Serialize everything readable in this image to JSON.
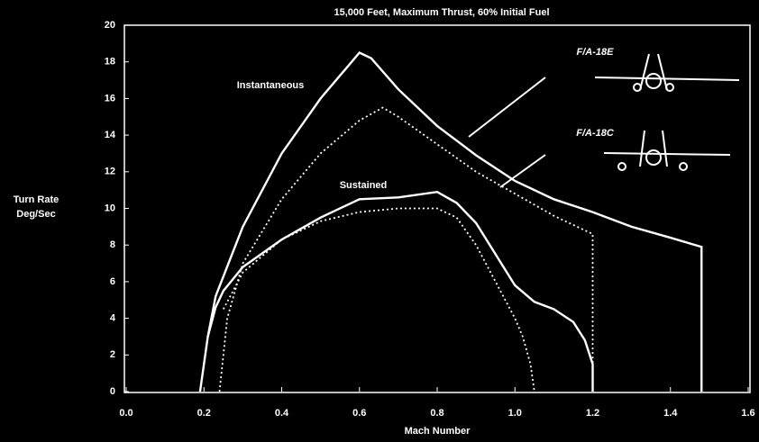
{
  "chart_data": {
    "type": "line",
    "title": "15,000 Feet, Maximum Thrust, 60% Initial Fuel",
    "xlabel": "Mach Number",
    "ylabel": [
      "Turn Rate",
      "Deg/Sec"
    ],
    "xlim": [
      0,
      1.6
    ],
    "xticks": [
      {
        "value": 0,
        "label": "0.0"
      },
      0.2,
      0.4,
      0.6,
      0.8,
      {
        "value": 1,
        "label": "1.0"
      },
      1.2,
      1.4,
      1.6
    ],
    "ylim": [
      0,
      20
    ],
    "yticks": [
      0,
      2,
      4,
      6,
      8,
      10,
      12,
      14,
      16,
      18,
      20
    ],
    "background": "#000000",
    "series": [
      {
        "color": "#ffffff",
        "dash": false,
        "x": [
          0.19,
          0.21,
          0.23,
          0.3,
          0.4,
          0.5,
          0.6,
          0.63,
          0.7,
          0.8,
          0.9,
          1.0,
          1.1,
          1.2,
          1.3,
          1.4,
          1.48,
          1.48
        ],
        "values": [
          0,
          3,
          5.2,
          9,
          13,
          16,
          18.5,
          18.2,
          16.5,
          14.5,
          12.9,
          11.5,
          10.5,
          9.8,
          9,
          8.4,
          7.9,
          0
        ]
      },
      {
        "color": "#ffffff",
        "dash": true,
        "x": [
          0.24,
          0.26,
          0.3,
          0.4,
          0.5,
          0.6,
          0.66,
          0.7,
          0.8,
          0.9,
          1.0,
          1.1,
          1.2,
          1.2
        ],
        "values": [
          0,
          4,
          7,
          10.5,
          13,
          14.8,
          15.5,
          15,
          13.5,
          12,
          10.8,
          9.6,
          8.6,
          0
        ]
      },
      {
        "color": "#ffffff",
        "dash": false,
        "x": [
          0.21,
          0.23,
          0.25,
          0.3,
          0.4,
          0.5,
          0.6,
          0.7,
          0.8,
          0.85,
          0.9,
          0.95,
          1.0,
          1.05,
          1.1,
          1.15,
          1.18,
          1.2,
          1.2
        ],
        "values": [
          3,
          4.6,
          5.5,
          6.8,
          8.3,
          9.5,
          10.5,
          10.6,
          10.9,
          10.3,
          9.2,
          7.5,
          5.8,
          4.9,
          4.5,
          3.8,
          2.8,
          1.5,
          0
        ]
      },
      {
        "color": "#ffffff",
        "dash": true,
        "x": [
          0.25,
          0.3,
          0.4,
          0.5,
          0.6,
          0.7,
          0.8,
          0.85,
          0.9,
          0.95,
          1.0,
          1.02,
          1.04,
          1.05
        ],
        "values": [
          4.5,
          6.5,
          8.3,
          9.3,
          9.8,
          10,
          10,
          9.5,
          8,
          6,
          4,
          3,
          1.5,
          0
        ]
      }
    ],
    "annotations": [
      "Instantaneous",
      "Sustained",
      "F/A-18E",
      "F/A-18C"
    ]
  }
}
